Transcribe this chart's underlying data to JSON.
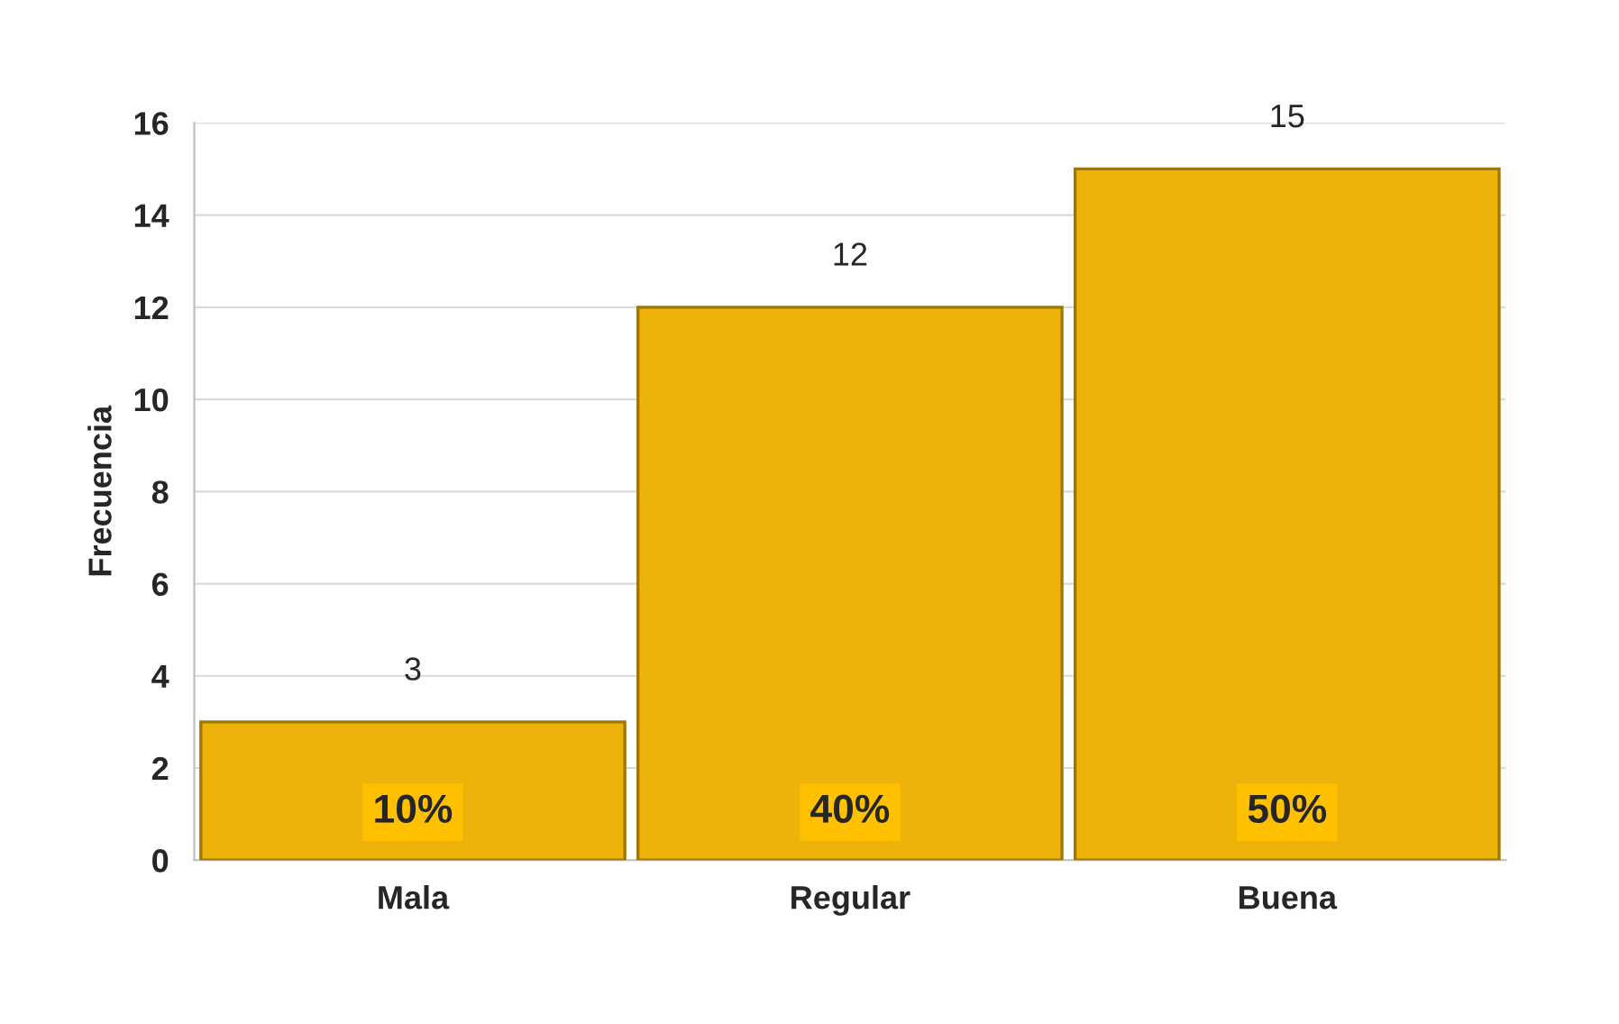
{
  "chart_data": {
    "type": "bar",
    "ylabel": "Frecuencia",
    "categories": [
      "Mala",
      "Regular",
      "Buena"
    ],
    "values": [
      3,
      12,
      15
    ],
    "color": "#edb30a",
    "data_labels": true,
    "ylim": [
      0,
      16
    ],
    "yticks": [
      0,
      2,
      4,
      6,
      8,
      10,
      12,
      14,
      16
    ],
    "grid": "y",
    "annotations": [
      "10%",
      "40%",
      "50%"
    ]
  }
}
